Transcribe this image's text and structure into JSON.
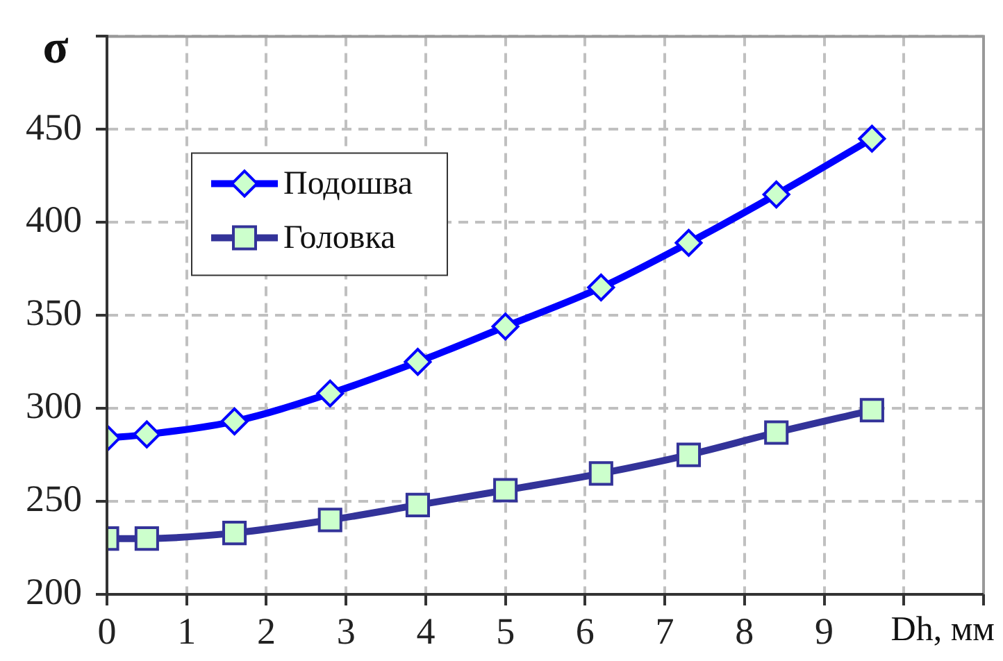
{
  "chart_data": {
    "type": "line",
    "xlabel": "Dh, мм",
    "ylabel": "σ",
    "xlim": [
      0,
      11
    ],
    "xticks": [
      0,
      1,
      2,
      3,
      4,
      5,
      6,
      7,
      8,
      9,
      {
        "value": 10,
        "label": null
      },
      {
        "value": 11,
        "label": null
      }
    ],
    "ylim": [
      200,
      500
    ],
    "yticks": [
      200,
      250,
      300,
      350,
      400,
      450,
      {
        "value": 500,
        "label": null
      }
    ],
    "grid": true,
    "legend": "top left",
    "line_style": "solid",
    "series": [
      {
        "name": "Подошва",
        "color": "#0000ff",
        "marker": "diamond",
        "x": [
          0,
          0.5,
          1.6,
          2.8,
          3.9,
          5,
          6.2,
          7.3,
          8.4,
          9.6
        ],
        "values": [
          284,
          286,
          293,
          308,
          325,
          344,
          365,
          389,
          415,
          445
        ]
      },
      {
        "name": "Головка",
        "color": "#333399",
        "marker": "square",
        "x": [
          0,
          0.5,
          1.6,
          2.8,
          3.9,
          5,
          6.2,
          7.3,
          8.4,
          9.6
        ],
        "values": [
          230,
          230,
          233,
          240,
          248,
          256,
          265,
          275,
          287,
          299
        ]
      }
    ]
  }
}
